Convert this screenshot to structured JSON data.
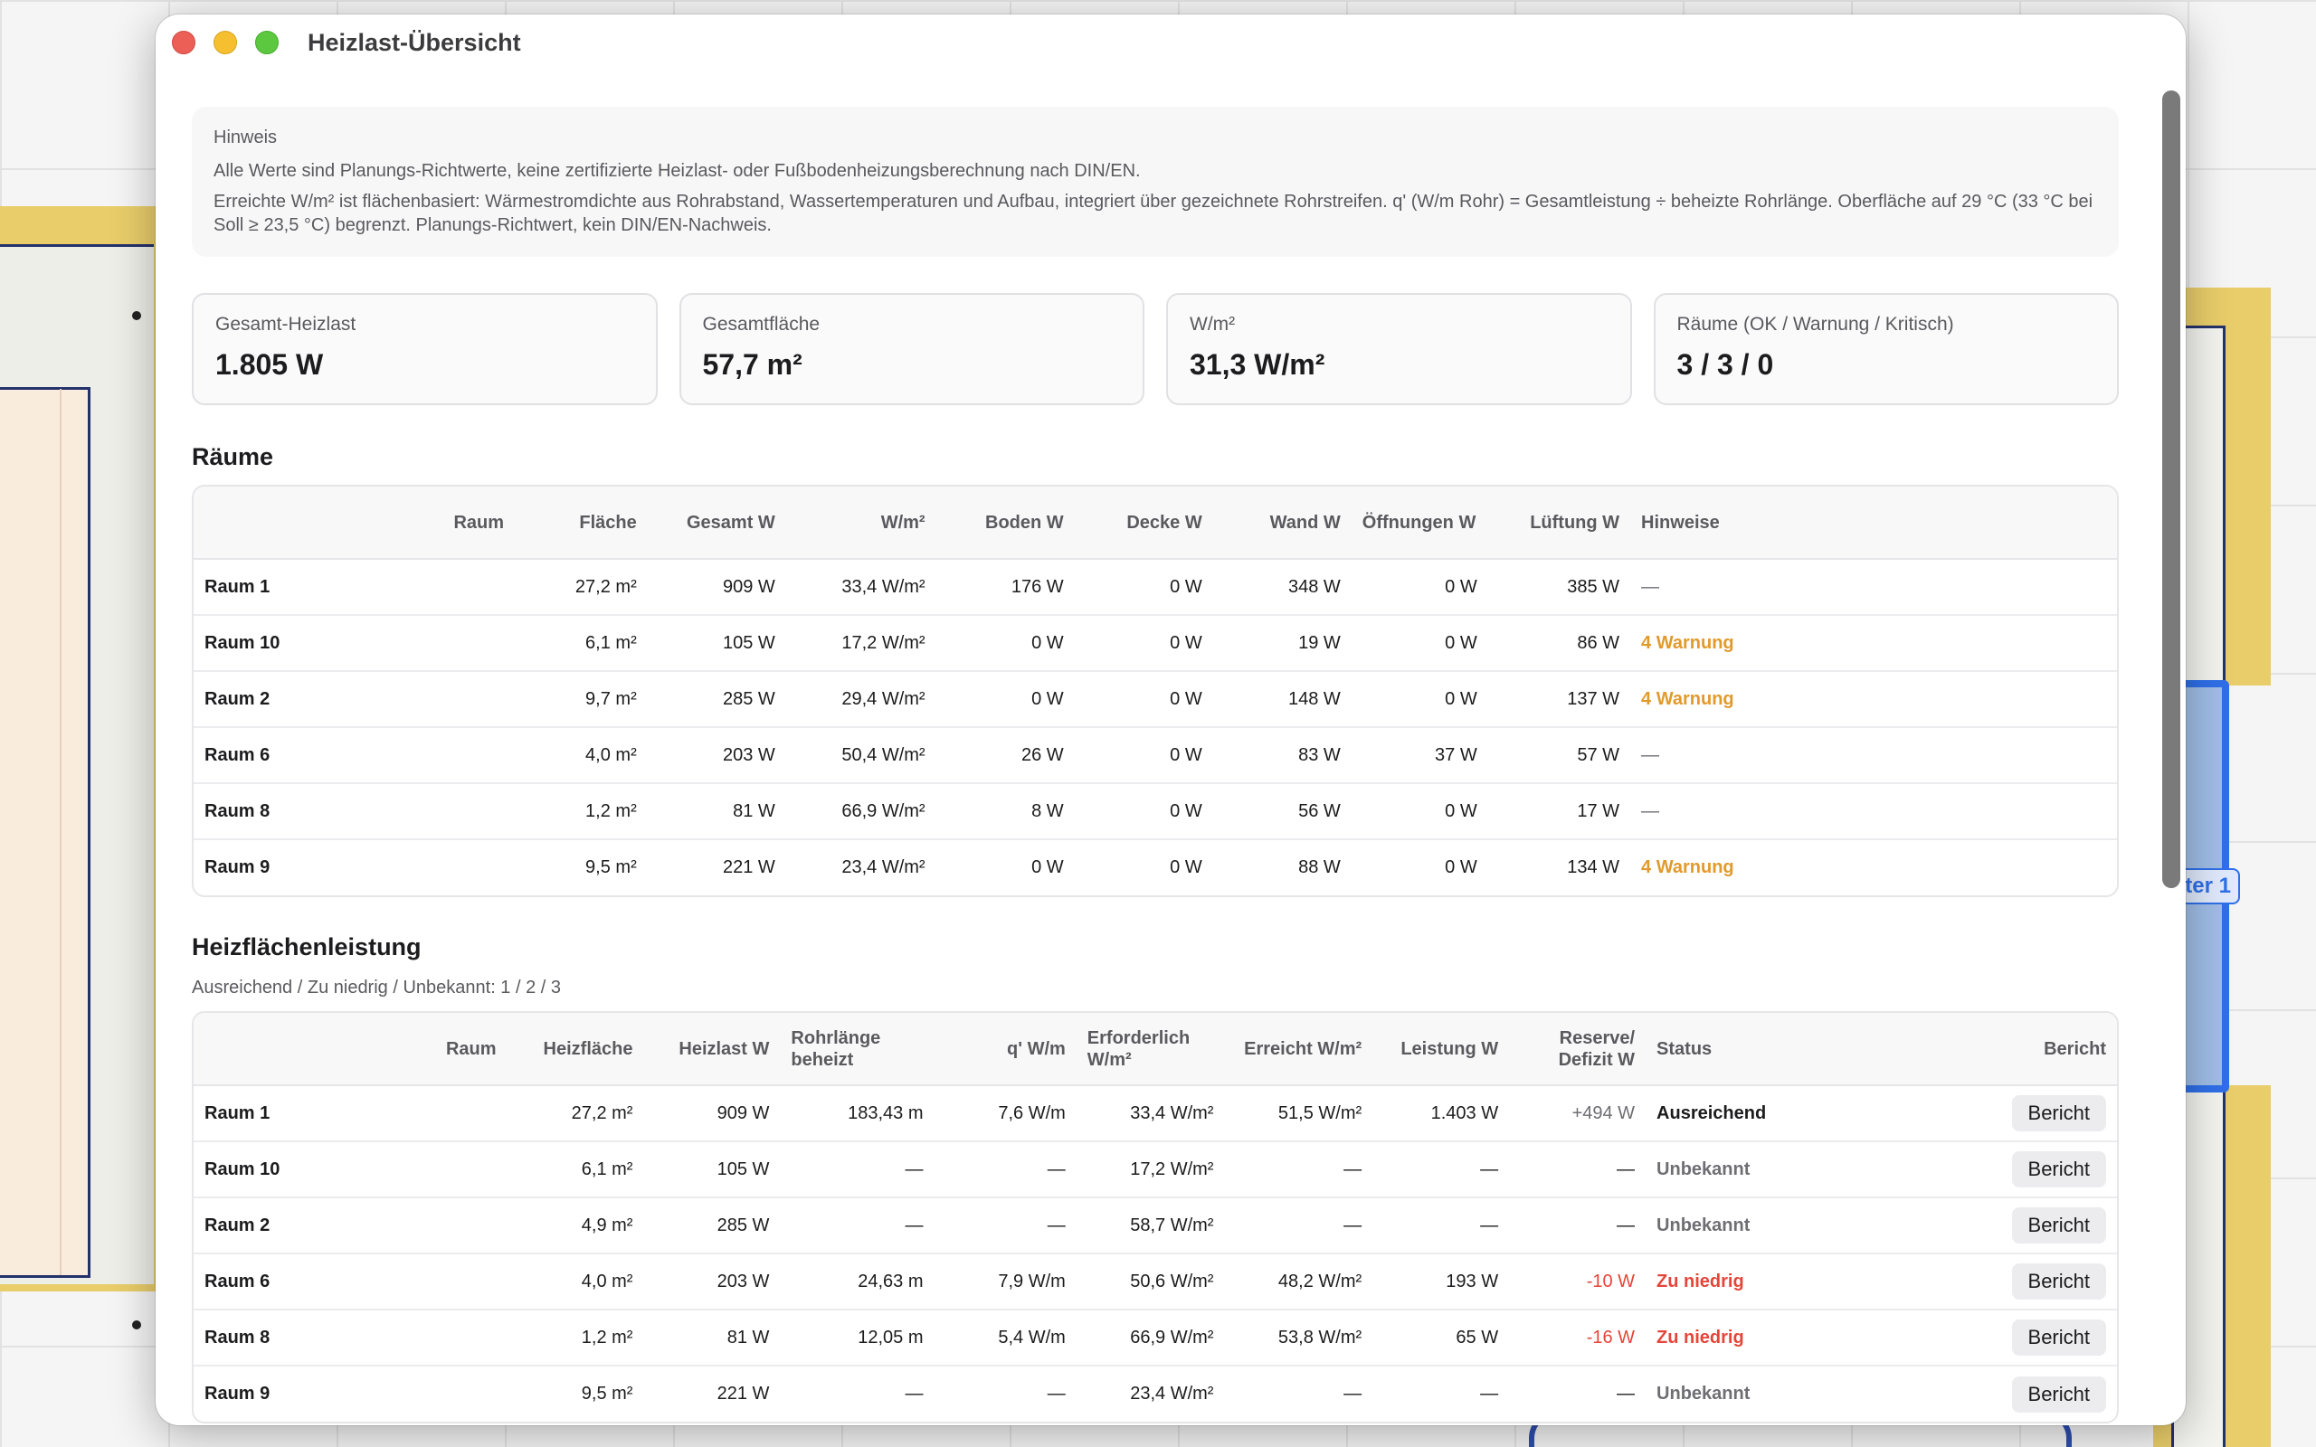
{
  "window": {
    "title": "Heizlast-Übersicht"
  },
  "notice": {
    "title": "Hinweis",
    "line1": "Alle Werte sind Planungs-Richtwerte, keine zertifizierte Heizlast- oder Fußbodenheizungsberechnung nach DIN/EN.",
    "line2": "Erreichte W/m² ist flächenbasiert: Wärmestromdichte aus Rohrabstand, Wassertemperaturen und Aufbau, integriert über gezeichnete Rohrstreifen. q' (W/m Rohr) = Gesamtleistung ÷ beheizte Rohrlänge. Oberfläche auf 29 °C (33 °C bei Soll ≥ 23,5 °C) begrenzt. Planungs-Richtwert, kein DIN/EN-Nachweis."
  },
  "stats": [
    {
      "label": "Gesamt-Heizlast",
      "value": "1.805 W"
    },
    {
      "label": "Gesamtfläche",
      "value": "57,7 m²"
    },
    {
      "label": "W/m²",
      "value": "31,3 W/m²"
    },
    {
      "label": "Räume (OK / Warnung / Kritisch)",
      "value": "3 / 3 / 0"
    }
  ],
  "rooms": {
    "title": "Räume",
    "headers": {
      "raum": "Raum",
      "flaeche": "Fläche",
      "gesamt": "Gesamt W",
      "wm2": "W/m²",
      "boden": "Boden W",
      "decke": "Decke W",
      "wand": "Wand W",
      "oeffnungen": "Öffnungen W",
      "lueftung": "Lüftung W",
      "hinweise": "Hinweise"
    },
    "rows": [
      {
        "name": "Raum 1",
        "flaeche": "27,2 m²",
        "gesamt": "909 W",
        "wm2": "33,4 W/m²",
        "boden": "176 W",
        "decke": "0 W",
        "wand": "348 W",
        "oeffnungen": "0 W",
        "lueftung": "385 W",
        "hinweise": "—"
      },
      {
        "name": "Raum 10",
        "flaeche": "6,1 m²",
        "gesamt": "105 W",
        "wm2": "17,2 W/m²",
        "boden": "0 W",
        "decke": "0 W",
        "wand": "19 W",
        "oeffnungen": "0 W",
        "lueftung": "86 W",
        "hinweise": "4 Warnung"
      },
      {
        "name": "Raum 2",
        "flaeche": "9,7 m²",
        "gesamt": "285 W",
        "wm2": "29,4 W/m²",
        "boden": "0 W",
        "decke": "0 W",
        "wand": "148 W",
        "oeffnungen": "0 W",
        "lueftung": "137 W",
        "hinweise": "4 Warnung"
      },
      {
        "name": "Raum 6",
        "flaeche": "4,0 m²",
        "gesamt": "203 W",
        "wm2": "50,4 W/m²",
        "boden": "26 W",
        "decke": "0 W",
        "wand": "83 W",
        "oeffnungen": "37 W",
        "lueftung": "57 W",
        "hinweise": "—"
      },
      {
        "name": "Raum 8",
        "flaeche": "1,2 m²",
        "gesamt": "81 W",
        "wm2": "66,9 W/m²",
        "boden": "8 W",
        "decke": "0 W",
        "wand": "56 W",
        "oeffnungen": "0 W",
        "lueftung": "17 W",
        "hinweise": "—"
      },
      {
        "name": "Raum 9",
        "flaeche": "9,5 m²",
        "gesamt": "221 W",
        "wm2": "23,4 W/m²",
        "boden": "0 W",
        "decke": "0 W",
        "wand": "88 W",
        "oeffnungen": "0 W",
        "lueftung": "134 W",
        "hinweise": "4 Warnung"
      }
    ]
  },
  "heating": {
    "title": "Heizflächenleistung",
    "summary": "Ausreichend / Zu niedrig / Unbekannt: 1 / 2 / 3",
    "headers": {
      "raum": "Raum",
      "heizflaeche": "Heizfläche",
      "heizlast": "Heizlast W",
      "rohrlaenge": "Rohrlänge beheizt",
      "q": "q' W/m",
      "erforderlich": "Erforderlich W/m²",
      "erreicht": "Erreicht W/m²",
      "leistung": "Leistung W",
      "reserve": "Reserve/ Defizit W",
      "status": "Status",
      "bericht": "Bericht"
    },
    "button_label": "Bericht",
    "rows": [
      {
        "name": "Raum 1",
        "heizflaeche": "27,2 m²",
        "heizlast": "909 W",
        "rohrlaenge": "183,43 m",
        "q": "7,6 W/m",
        "erforderlich": "33,4 W/m²",
        "erreicht": "51,5 W/m²",
        "leistung": "1.403 W",
        "reserve": "+494 W",
        "status": "Ausreichend"
      },
      {
        "name": "Raum 10",
        "heizflaeche": "6,1 m²",
        "heizlast": "105 W",
        "rohrlaenge": "—",
        "q": "—",
        "erforderlich": "17,2 W/m²",
        "erreicht": "—",
        "leistung": "—",
        "reserve": "—",
        "status": "Unbekannt"
      },
      {
        "name": "Raum 2",
        "heizflaeche": "4,9 m²",
        "heizlast": "285 W",
        "rohrlaenge": "—",
        "q": "—",
        "erforderlich": "58,7 W/m²",
        "erreicht": "—",
        "leistung": "—",
        "reserve": "—",
        "status": "Unbekannt"
      },
      {
        "name": "Raum 6",
        "heizflaeche": "4,0 m²",
        "heizlast": "203 W",
        "rohrlaenge": "24,63 m",
        "q": "7,9 W/m",
        "erforderlich": "50,6 W/m²",
        "erreicht": "48,2 W/m²",
        "leistung": "193 W",
        "reserve": "-10 W",
        "status": "Zu niedrig"
      },
      {
        "name": "Raum 8",
        "heizflaeche": "1,2 m²",
        "heizlast": "81 W",
        "rohrlaenge": "12,05 m",
        "q": "5,4 W/m",
        "erforderlich": "66,9 W/m²",
        "erreicht": "53,8 W/m²",
        "leistung": "65 W",
        "reserve": "-16 W",
        "status": "Zu niedrig"
      },
      {
        "name": "Raum 9",
        "heizflaeche": "9,5 m²",
        "heizlast": "221 W",
        "rohrlaenge": "—",
        "q": "—",
        "erforderlich": "23,4 W/m²",
        "erreicht": "—",
        "leistung": "—",
        "reserve": "—",
        "status": "Unbekannt"
      }
    ]
  },
  "canvas": {
    "room_label": "ter 1"
  }
}
